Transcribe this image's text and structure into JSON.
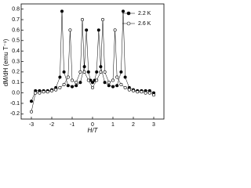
{
  "chart_data": {
    "type": "line",
    "xlabel": "H/T",
    "ylabel": "dM/dH (emu T⁻¹)",
    "xlim": [
      -3.5,
      3.5
    ],
    "xticks": [
      -3,
      -2,
      -1,
      0,
      1,
      2,
      3
    ],
    "ylim": [
      -0.25,
      0.85
    ],
    "yticks": [
      -0.2,
      -0.1,
      {
        "value": 0,
        "label": "0.0"
      },
      0.1,
      0.2,
      0.3,
      0.4,
      0.5,
      0.6,
      0.7,
      0.8
    ],
    "legend": "upper right",
    "series": [
      {
        "name": "2.2 K",
        "color": "#000000",
        "marker": "filled",
        "x": [
          -3,
          -2.8,
          -2.6,
          -2.4,
          -2.2,
          -2.0,
          -1.8,
          -1.6,
          -1.5,
          -1.4,
          -1.2,
          -1.0,
          -0.8,
          -0.6,
          -0.4,
          -0.3,
          -0.2,
          -0.1,
          0,
          0.1,
          0.2,
          0.3,
          0.4,
          0.6,
          0.8,
          1.0,
          1.2,
          1.4,
          1.5,
          1.6,
          1.8,
          2.0,
          2.2,
          2.4,
          2.6,
          2.8,
          3
        ],
        "values": [
          -0.08,
          0.02,
          0.02,
          0.02,
          0.02,
          0.03,
          0.05,
          0.15,
          0.78,
          0.2,
          0.07,
          0.06,
          0.07,
          0.1,
          0.25,
          0.6,
          0.2,
          0.12,
          0.1,
          0.12,
          0.2,
          0.6,
          0.25,
          0.1,
          0.07,
          0.06,
          0.07,
          0.2,
          0.78,
          0.15,
          0.05,
          0.03,
          0.02,
          0.02,
          0.02,
          0.02,
          0.0
        ]
      },
      {
        "name": "2.6 K",
        "color": "#000000",
        "marker": "open",
        "x": [
          -3,
          -2.8,
          -2.6,
          -2.4,
          -2.2,
          -2.0,
          -1.8,
          -1.6,
          -1.4,
          -1.2,
          -1.1,
          -1.0,
          -0.8,
          -0.6,
          -0.5,
          -0.4,
          -0.2,
          0,
          0.2,
          0.4,
          0.5,
          0.6,
          0.8,
          1.0,
          1.1,
          1.2,
          1.4,
          1.6,
          1.8,
          2.0,
          2.2,
          2.4,
          2.6,
          2.8,
          3
        ],
        "values": [
          -0.18,
          0.0,
          0.0,
          0.01,
          0.01,
          0.02,
          0.03,
          0.05,
          0.08,
          0.15,
          0.6,
          0.12,
          0.1,
          0.2,
          0.7,
          0.2,
          0.12,
          0.05,
          0.12,
          0.2,
          0.7,
          0.2,
          0.1,
          0.12,
          0.6,
          0.15,
          0.08,
          0.05,
          0.03,
          0.02,
          0.01,
          0.01,
          0.0,
          0.0,
          -0.02
        ]
      }
    ]
  }
}
